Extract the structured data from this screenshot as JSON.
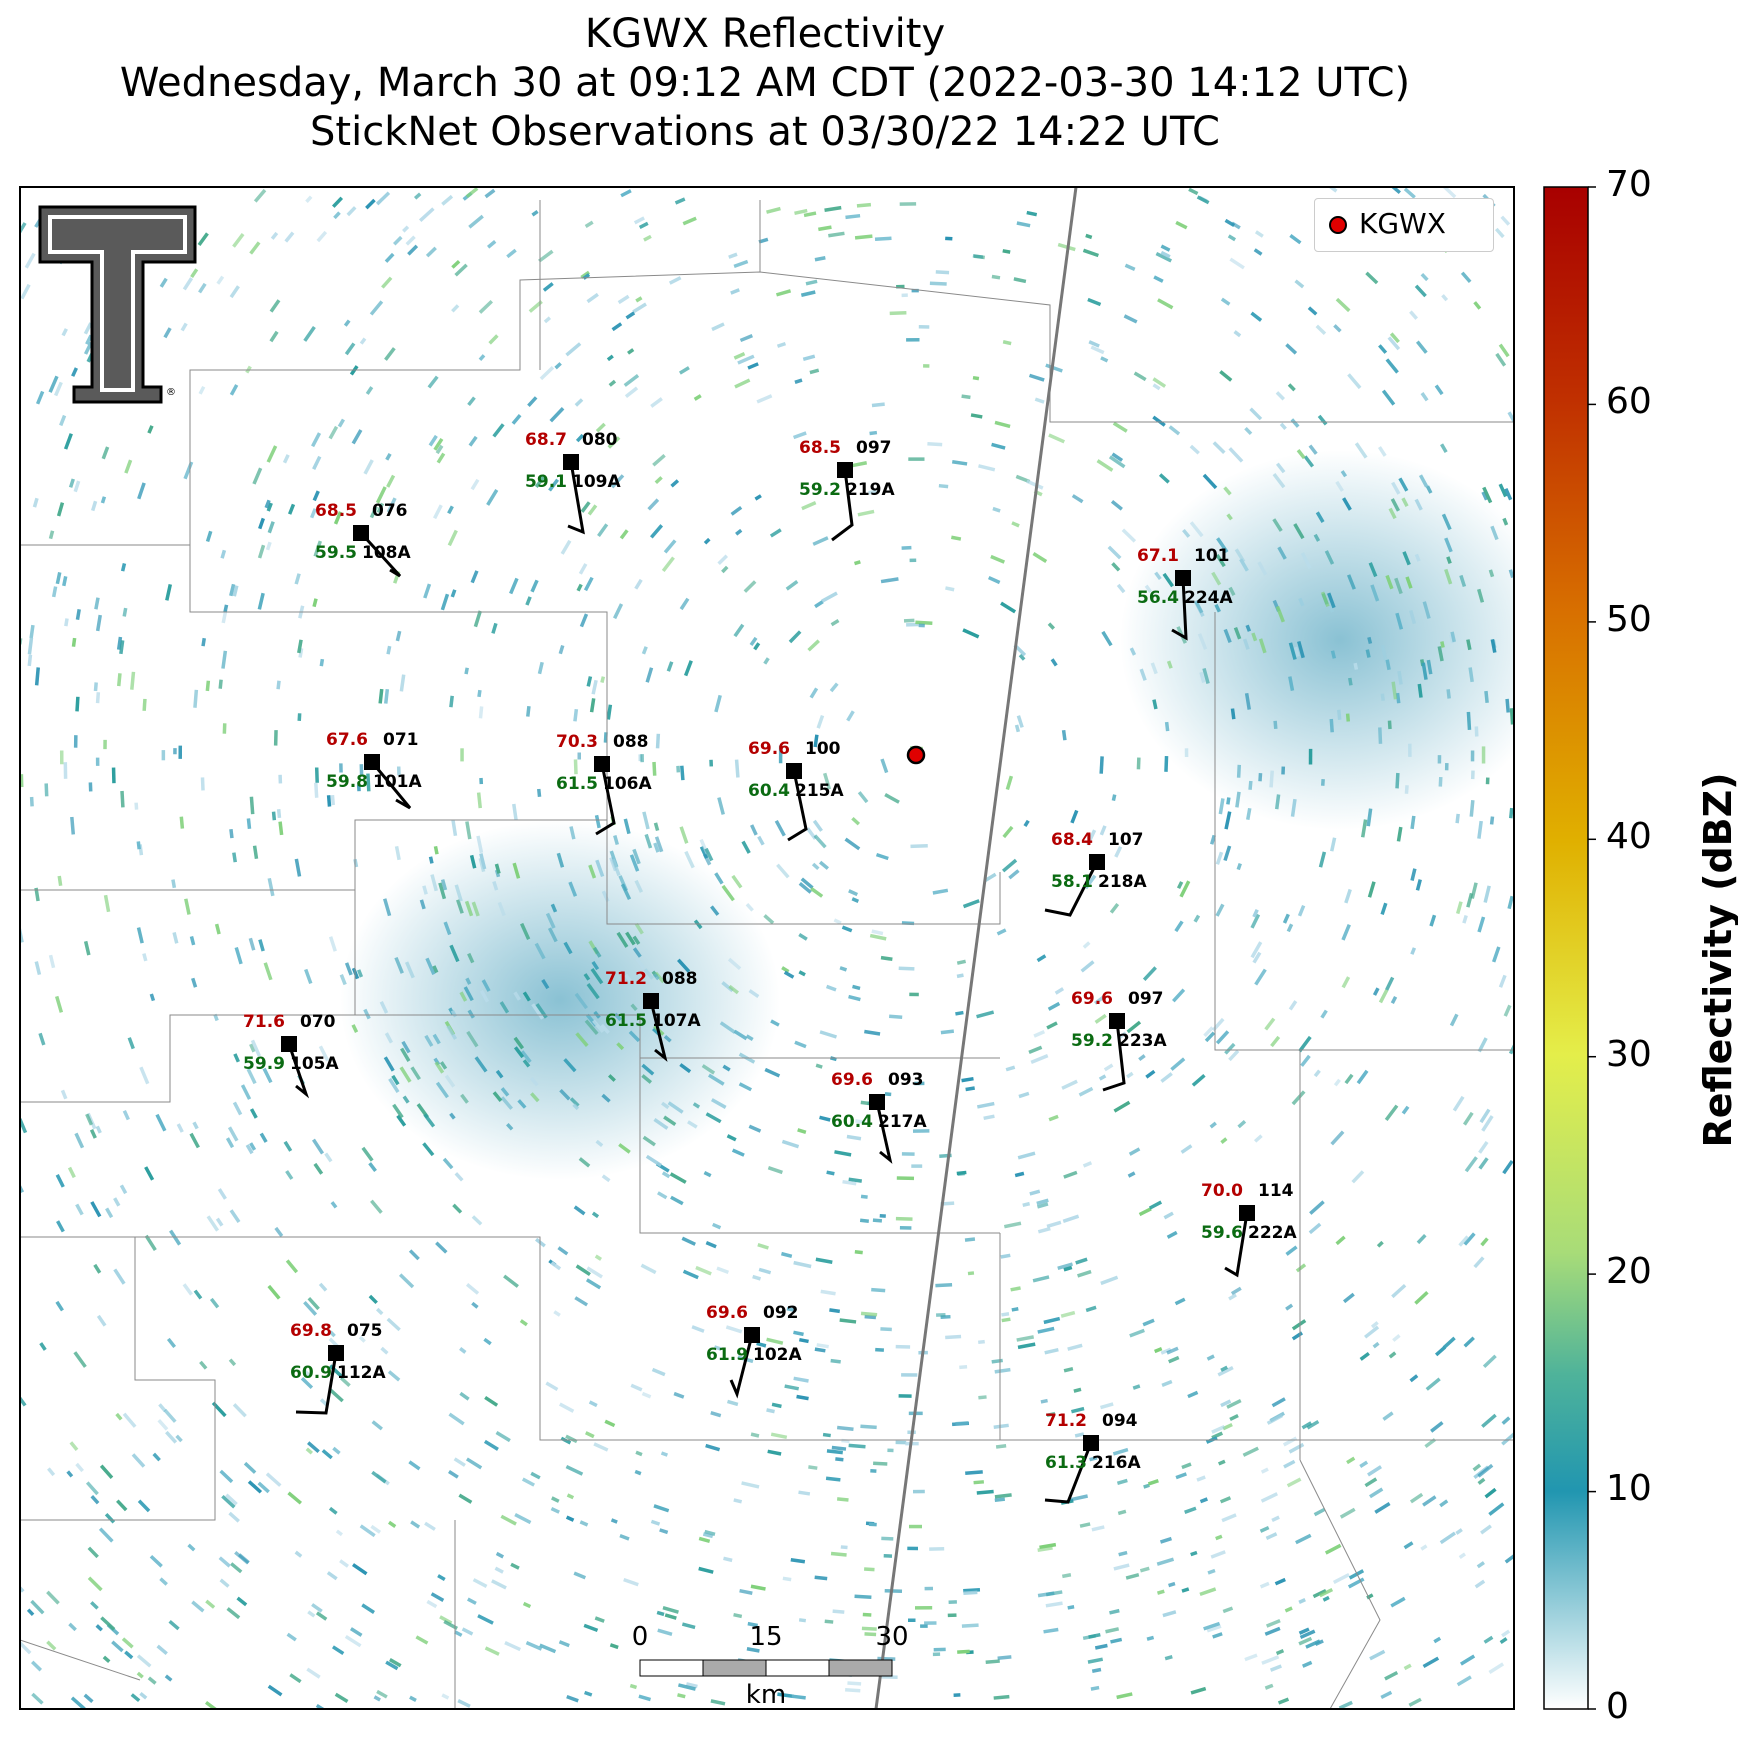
{
  "title": {
    "line1": "KGWX Reflectivity",
    "line2": "Wednesday, March 30 at 09:12 AM CDT (2022-03-30 14:12 UTC)",
    "line3": "StickNet Observations at 03/30/22 14:22 UTC"
  },
  "legend": {
    "label": "KGWX",
    "marker_color": "#e00000"
  },
  "colorbar": {
    "label": "Reflectivity (dBZ)",
    "ticks": [
      "0",
      "10",
      "20",
      "30",
      "40",
      "50",
      "60",
      "70"
    ],
    "min": 0,
    "max": 70,
    "colors": [
      "#ffffff",
      "#2196b0",
      "#4fb39a",
      "#a8dc78",
      "#e4ee4a",
      "#e0b000",
      "#d87000",
      "#c03000",
      "#a80000"
    ]
  },
  "scalebar": {
    "ticks": [
      "0",
      "15",
      "30"
    ],
    "unit": "km"
  },
  "logo": {
    "icon": "texas-tech-double-t-logo"
  },
  "stations": [
    {
      "id": "109A",
      "temp": "68.7",
      "dew": "59.1",
      "pressure": "080"
    },
    {
      "id": "219A",
      "temp": "68.5",
      "dew": "59.2",
      "pressure": "097"
    },
    {
      "id": "108A",
      "temp": "68.5",
      "dew": "59.5",
      "pressure": "076"
    },
    {
      "id": "224A",
      "temp": "67.1",
      "dew": "56.4",
      "pressure": "101"
    },
    {
      "id": "101A",
      "temp": "67.6",
      "dew": "59.8",
      "pressure": "071"
    },
    {
      "id": "106A",
      "temp": "70.3",
      "dew": "61.5",
      "pressure": "088"
    },
    {
      "id": "215A",
      "temp": "69.6",
      "dew": "60.4",
      "pressure": "100"
    },
    {
      "id": "218A",
      "temp": "68.4",
      "dew": "58.1",
      "pressure": "107"
    },
    {
      "id": "107A",
      "temp": "71.2",
      "dew": "61.5",
      "pressure": "088"
    },
    {
      "id": "223A",
      "temp": "69.6",
      "dew": "59.2",
      "pressure": "097"
    },
    {
      "id": "105A",
      "temp": "71.6",
      "dew": "59.9",
      "pressure": "070"
    },
    {
      "id": "217A",
      "temp": "69.6",
      "dew": "60.4",
      "pressure": "093"
    },
    {
      "id": "222A",
      "temp": "70.0",
      "dew": "59.6",
      "pressure": "114"
    },
    {
      "id": "112A",
      "temp": "69.8",
      "dew": "60.9",
      "pressure": "075"
    },
    {
      "id": "102A",
      "temp": "69.6",
      "dew": "61.9",
      "pressure": "092"
    },
    {
      "id": "216A",
      "temp": "71.2",
      "dew": "61.3",
      "pressure": "094"
    }
  ]
}
